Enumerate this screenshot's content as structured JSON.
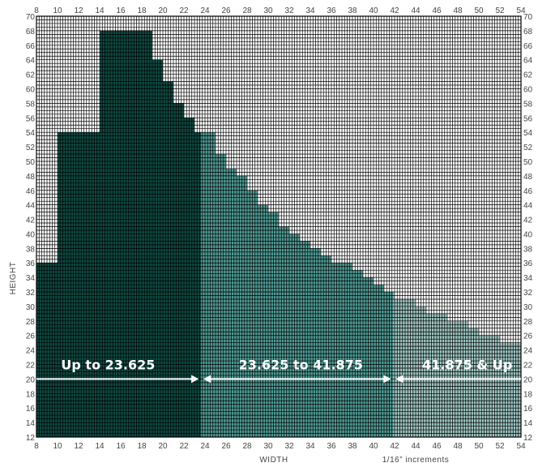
{
  "chart_data": {
    "type": "area",
    "xlabel": "WIDTH",
    "ylabel": "HEIGHT",
    "note": "1/16” increments",
    "xlim": [
      8,
      54
    ],
    "ylim": [
      12,
      70
    ],
    "x_ticks": [
      8,
      10,
      12,
      14,
      16,
      18,
      20,
      22,
      24,
      26,
      28,
      30,
      32,
      34,
      36,
      38,
      40,
      42,
      44,
      46,
      48,
      50,
      52,
      54
    ],
    "y_ticks": [
      12,
      14,
      16,
      18,
      20,
      22,
      24,
      26,
      28,
      30,
      32,
      34,
      36,
      38,
      40,
      42,
      44,
      46,
      48,
      50,
      52,
      54,
      56,
      58,
      60,
      62,
      64,
      66,
      68,
      70
    ],
    "grid": true,
    "columns_x": [
      8,
      9,
      10,
      11,
      12,
      13,
      14,
      15,
      16,
      17,
      18,
      19,
      20,
      21,
      22,
      23,
      24,
      25,
      26,
      27,
      28,
      29,
      30,
      31,
      32,
      33,
      34,
      35,
      36,
      37,
      38,
      39,
      40,
      41,
      42,
      43,
      44,
      45,
      46,
      47,
      48,
      49,
      50,
      51,
      52,
      53
    ],
    "max_height": [
      36,
      36,
      54,
      54,
      54,
      54,
      68,
      68,
      68,
      68,
      68,
      64,
      61,
      58,
      56,
      54,
      54,
      51,
      49,
      48,
      46,
      44,
      43,
      41,
      40,
      39,
      38,
      37,
      36,
      36,
      35,
      34,
      33,
      32,
      31,
      31,
      30,
      29,
      29,
      28,
      28,
      27,
      26,
      26,
      25,
      25
    ],
    "zones": [
      {
        "label": "Up to 23.625",
        "from": 8,
        "to": 23.625,
        "color": "#0d4a42"
      },
      {
        "label": "23.625 to 41.875",
        "from": 23.625,
        "to": 41.875,
        "color": "#4f9a94"
      },
      {
        "label": "41.875 & Up",
        "from": 41.875,
        "to": 54,
        "color": "#9dc4c0"
      }
    ],
    "arrow_y": 20
  }
}
